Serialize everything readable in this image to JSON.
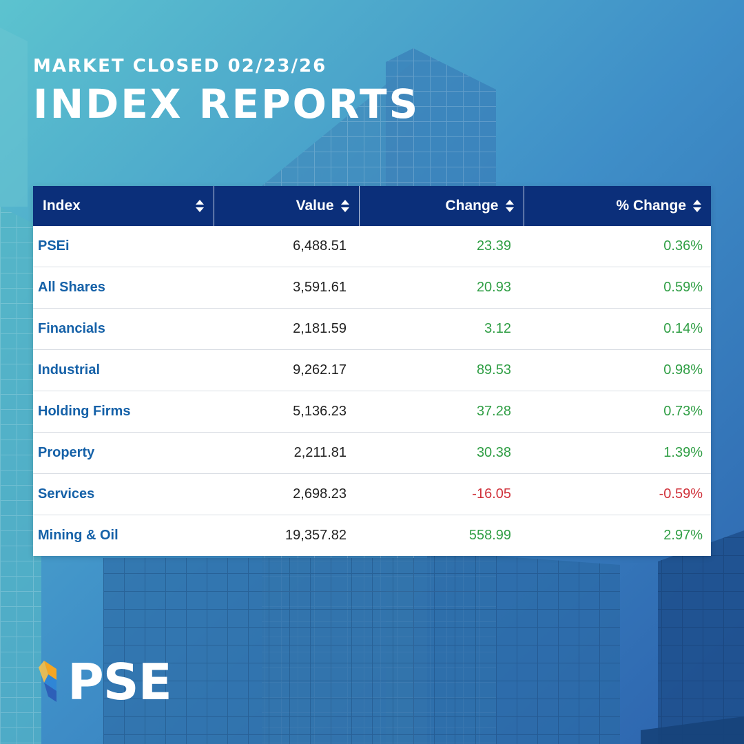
{
  "header": {
    "subtitle": "MARKET CLOSED 02/23/26",
    "title": "INDEX REPORTS"
  },
  "table": {
    "columns": [
      {
        "label": "Index",
        "sort_icon": "sort-icon"
      },
      {
        "label": "Value",
        "sort_icon": "sort-icon"
      },
      {
        "label": "Change",
        "sort_icon": "sort-icon"
      },
      {
        "label": "% Change",
        "sort_icon": "sort-icon"
      }
    ],
    "rows": [
      {
        "index": "PSEi",
        "value": "6,488.51",
        "change": "23.39",
        "pct_change": "0.36%",
        "direction": "up"
      },
      {
        "index": "All Shares",
        "value": "3,591.61",
        "change": "20.93",
        "pct_change": "0.59%",
        "direction": "up"
      },
      {
        "index": "Financials",
        "value": "2,181.59",
        "change": "3.12",
        "pct_change": "0.14%",
        "direction": "up"
      },
      {
        "index": "Industrial",
        "value": "9,262.17",
        "change": "89.53",
        "pct_change": "0.98%",
        "direction": "up"
      },
      {
        "index": "Holding Firms",
        "value": "5,136.23",
        "change": "37.28",
        "pct_change": "0.73%",
        "direction": "up"
      },
      {
        "index": "Property",
        "value": "2,211.81",
        "change": "30.38",
        "pct_change": "1.39%",
        "direction": "up"
      },
      {
        "index": "Services",
        "value": "2,698.23",
        "change": "-16.05",
        "pct_change": "-0.59%",
        "direction": "down"
      },
      {
        "index": "Mining & Oil",
        "value": "19,357.82",
        "change": "558.99",
        "pct_change": "2.97%",
        "direction": "up"
      }
    ]
  },
  "logo": {
    "text": "PSE",
    "icon": "pse-logo-icon"
  },
  "colors": {
    "header_bg": "#0b2f7a",
    "index_name": "#1561a8",
    "positive": "#2f9e44",
    "negative": "#d0313a"
  }
}
